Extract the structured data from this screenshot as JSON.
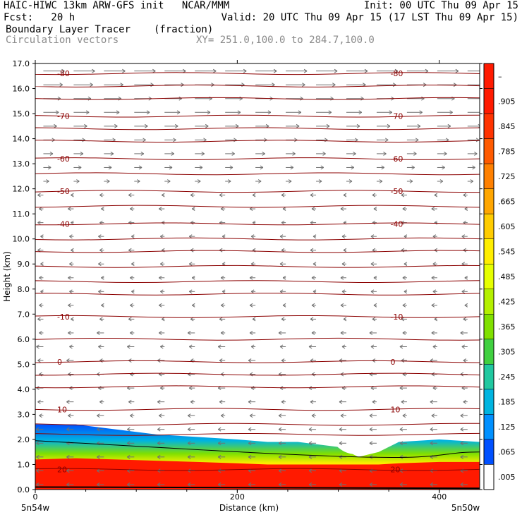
{
  "header": {
    "left_line1": "HAIC-HIWC 13km ARW-GFS init   NCAR/MMM",
    "right_line1": "Init: 00 UTC Thu 09 Apr 15",
    "left_line2": "Fcst:   20 h",
    "right_line2": "Valid: 20 UTC Thu 09 Apr 15 (17 LST Thu 09 Apr 15)",
    "field_name": "Boundary Layer Tracer",
    "field_units": "(fraction)",
    "vector_name": "Circulation vectors",
    "xy_range": "XY= 251.0,100.0 to 284.7,100.0"
  },
  "chart_data": {
    "type": "heatmap",
    "title": "Boundary Layer Tracer",
    "xlabel": "Distance (km)",
    "ylabel": "Height (km)",
    "xlim": [
      0,
      440
    ],
    "ylim": [
      0,
      17
    ],
    "x_ticks": [
      "0",
      "200",
      "400"
    ],
    "x_tick_values": [
      0,
      200,
      400
    ],
    "x_end_labels": [
      "5n54w",
      "5n50w"
    ],
    "y_ticks": [
      "0.0",
      "1.0",
      "2.0",
      "3.0",
      "4.0",
      "5.0",
      "6.0",
      "7.0",
      "8.0",
      "9.0",
      "10.0",
      "11.0",
      "12.0",
      "13.0",
      "14.0",
      "15.0",
      "16.0",
      "17.0"
    ],
    "colorbar": {
      "labels": [
        "–",
        ".905",
        ".845",
        ".785",
        ".725",
        ".665",
        ".605",
        ".545",
        ".485",
        ".425",
        ".365",
        ".305",
        ".245",
        ".185",
        ".125",
        ".065",
        ".005"
      ],
      "colors": [
        "#ff1a00",
        "#ff1a00",
        "#ff3300",
        "#ff5a00",
        "#ff8000",
        "#ffa600",
        "#ffcc00",
        "#ffee00",
        "#e6ff00",
        "#b4f000",
        "#80e000",
        "#40d040",
        "#20c8a0",
        "#00b4e0",
        "#0090ff",
        "#0050ff",
        "#ffffff"
      ]
    },
    "temperature_contours": {
      "color": "#8b0000",
      "levels": [
        {
          "label": "-80",
          "height": 16.6
        },
        {
          "label": "-70",
          "height": 14.9
        },
        {
          "label": "-60",
          "height": 13.2
        },
        {
          "label": "-50",
          "height": 11.9
        },
        {
          "label": "-40",
          "height": 10.6
        },
        {
          "label": "-10",
          "height": 6.9
        },
        {
          "label": "0",
          "height": 5.1
        },
        {
          "label": "10",
          "height": 3.2
        },
        {
          "label": "20",
          "height": 0.8
        }
      ],
      "unlabeled_heights": [
        16.1,
        15.6,
        14.4,
        13.9,
        12.6,
        11.3,
        10.0,
        9.5,
        8.9,
        8.3,
        7.8,
        6.0,
        4.6,
        4.1,
        2.6,
        2.2
      ]
    },
    "tracer_top_profile": {
      "x": [
        0,
        40,
        80,
        120,
        160,
        200,
        230,
        260,
        300,
        320,
        340,
        360,
        400,
        440
      ],
      "top_height": [
        2.6,
        2.6,
        2.4,
        2.2,
        2.1,
        2.0,
        1.9,
        1.9,
        1.7,
        1.3,
        1.5,
        1.9,
        2.0,
        1.9
      ],
      "red_top_height": [
        1.2,
        1.25,
        1.2,
        1.15,
        1.1,
        1.05,
        1.0,
        1.0,
        1.0,
        1.0,
        1.0,
        1.05,
        1.1,
        1.1
      ]
    }
  }
}
